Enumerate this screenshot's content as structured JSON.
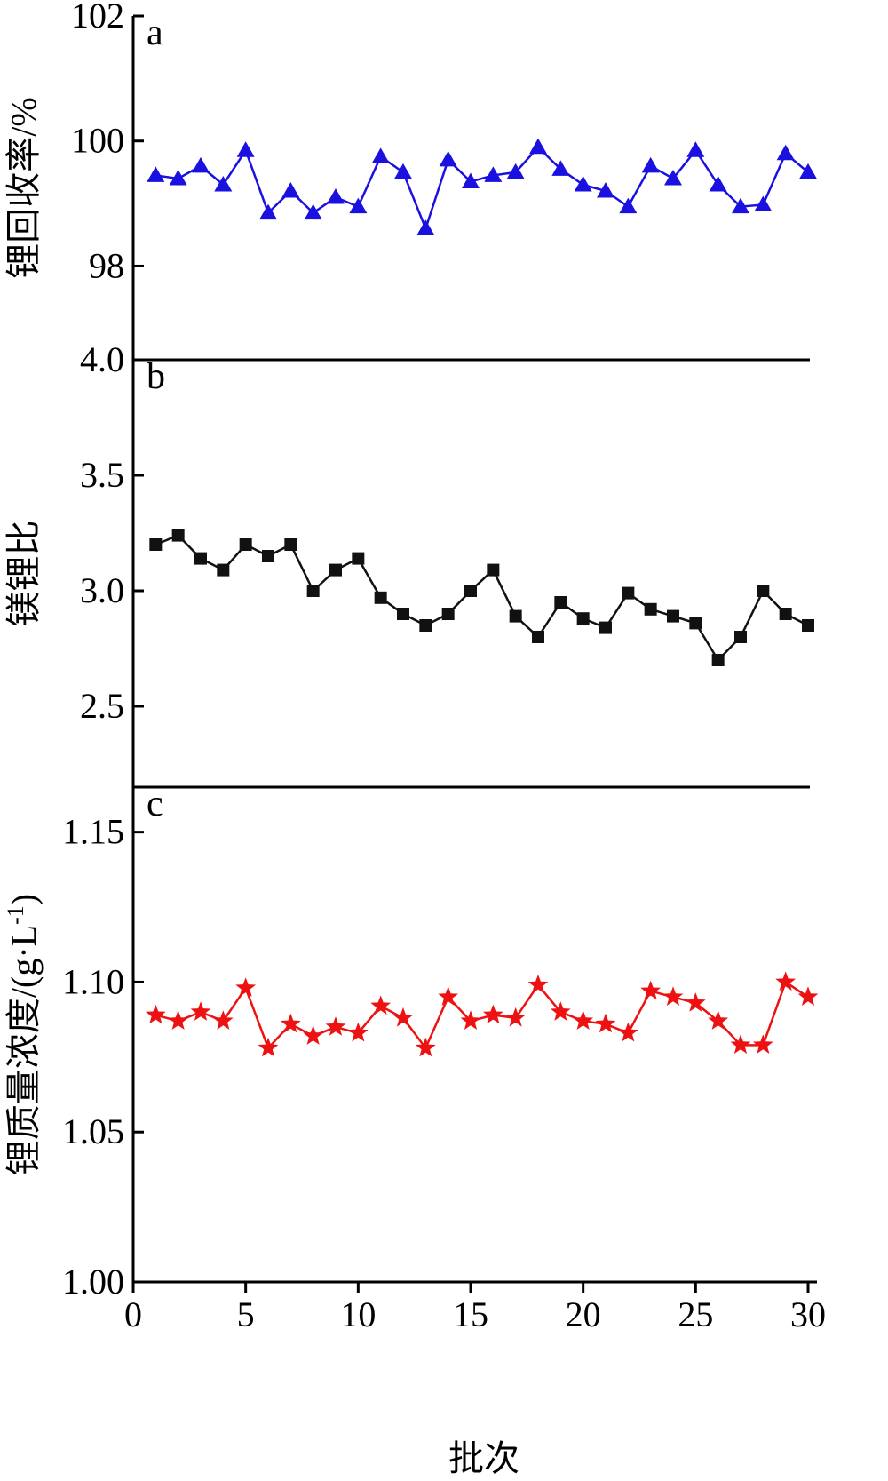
{
  "x_axis_label": "批次",
  "chart_data": [
    {
      "type": "line",
      "panel_label": "a",
      "ylabel": "锂回收率/%",
      "xlabel": "",
      "xlim": [
        0,
        30
      ],
      "ylim": [
        96.5,
        102
      ],
      "yticks": [
        98,
        100,
        102
      ],
      "x": [
        1,
        2,
        3,
        4,
        5,
        6,
        7,
        8,
        9,
        10,
        11,
        12,
        13,
        14,
        15,
        16,
        17,
        18,
        19,
        20,
        21,
        22,
        23,
        24,
        25,
        26,
        27,
        28,
        29,
        30
      ],
      "series": [
        {
          "marker": "triangle",
          "color": "#1a10e0",
          "values": [
            99.45,
            99.4,
            99.6,
            99.3,
            99.85,
            98.85,
            99.2,
            98.85,
            99.1,
            98.95,
            99.75,
            99.5,
            98.6,
            99.7,
            99.35,
            99.45,
            99.5,
            99.9,
            99.55,
            99.3,
            99.2,
            98.95,
            99.6,
            99.4,
            99.85,
            99.3,
            98.95,
            98.98,
            99.8,
            99.5
          ]
        }
      ]
    },
    {
      "type": "line",
      "panel_label": "b",
      "ylabel": "镁锂比",
      "xlabel": "",
      "xlim": [
        0,
        30
      ],
      "ylim": [
        2.15,
        4.0
      ],
      "yticks": [
        2.5,
        3.0,
        3.5,
        4.0
      ],
      "ytick_labels": [
        "2.5",
        "3.0",
        "3.5",
        "4.0"
      ],
      "x": [
        1,
        2,
        3,
        4,
        5,
        6,
        7,
        8,
        9,
        10,
        11,
        12,
        13,
        14,
        15,
        16,
        17,
        18,
        19,
        20,
        21,
        22,
        23,
        24,
        25,
        26,
        27,
        28,
        29,
        30
      ],
      "series": [
        {
          "marker": "square",
          "color": "#111111",
          "values": [
            3.2,
            3.24,
            3.14,
            3.09,
            3.2,
            3.15,
            3.2,
            3.0,
            3.09,
            3.14,
            2.97,
            2.9,
            2.85,
            2.9,
            3.0,
            3.09,
            2.89,
            2.8,
            2.95,
            2.88,
            2.84,
            2.99,
            2.92,
            2.89,
            2.86,
            2.7,
            2.8,
            3.0,
            2.9,
            2.85
          ]
        }
      ]
    },
    {
      "type": "line",
      "panel_label": "c",
      "ylabel": "锂质量浓度/(g·L",
      "ylabel_sup": "-1",
      "ylabel_end": ")",
      "xlabel": "批次",
      "xlim": [
        0,
        30
      ],
      "ylim": [
        1.0,
        1.165
      ],
      "yticks": [
        1.0,
        1.05,
        1.1,
        1.15
      ],
      "ytick_labels": [
        "1.00",
        "1.05",
        "1.10",
        "1.15"
      ],
      "xticks": [
        0,
        5,
        10,
        15,
        20,
        25,
        30
      ],
      "xtick_labels": [
        "0",
        "5",
        "10",
        "15",
        "20",
        "25",
        "30"
      ],
      "x": [
        1,
        2,
        3,
        4,
        5,
        6,
        7,
        8,
        9,
        10,
        11,
        12,
        13,
        14,
        15,
        16,
        17,
        18,
        19,
        20,
        21,
        22,
        23,
        24,
        25,
        26,
        27,
        28,
        29,
        30
      ],
      "series": [
        {
          "marker": "star",
          "color": "#ee1111",
          "values": [
            1.089,
            1.087,
            1.09,
            1.087,
            1.098,
            1.078,
            1.086,
            1.082,
            1.085,
            1.083,
            1.092,
            1.088,
            1.078,
            1.095,
            1.087,
            1.089,
            1.088,
            1.099,
            1.09,
            1.087,
            1.086,
            1.083,
            1.097,
            1.095,
            1.093,
            1.087,
            1.079,
            1.079,
            1.1,
            1.095
          ]
        }
      ]
    }
  ]
}
